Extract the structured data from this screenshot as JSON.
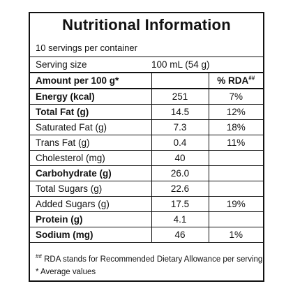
{
  "title": "Nutritional Information",
  "servings_per_container": "10 servings per container",
  "serving": {
    "label": "Serving size",
    "value": "100 mL (54 g)"
  },
  "header": {
    "label": "Amount per 100 g*",
    "rda_label": "% RDA",
    "rda_mark": "##"
  },
  "rows": [
    {
      "label": "Energy (kcal)",
      "amount": "251",
      "rda": "7%"
    },
    {
      "label": "Total Fat (g)",
      "amount": "14.5",
      "rda": "12%"
    },
    {
      "label": "Saturated Fat (g)",
      "amount": "7.3",
      "rda": "18%"
    },
    {
      "label": "Trans Fat (g)",
      "amount": "0.4",
      "rda": "11%"
    },
    {
      "label": "Cholesterol (mg)",
      "amount": "40",
      "rda": ""
    },
    {
      "label": "Carbohydrate (g)",
      "amount": "26.0",
      "rda": ""
    },
    {
      "label": "Total Sugars (g)",
      "amount": "22.6",
      "rda": ""
    },
    {
      "label": "Added Sugars (g)",
      "amount": "17.5",
      "rda": "19%"
    },
    {
      "label": "Protein (g)",
      "amount": "4.1",
      "rda": ""
    },
    {
      "label": "Sodium (mg)",
      "amount": "46",
      "rda": "1%"
    }
  ],
  "footnotes": {
    "rda_mark": "##",
    "rda_text": " RDA stands for Recommended Dietary Allowance per serving",
    "avg_mark": "*",
    "avg_text": " Average values"
  }
}
